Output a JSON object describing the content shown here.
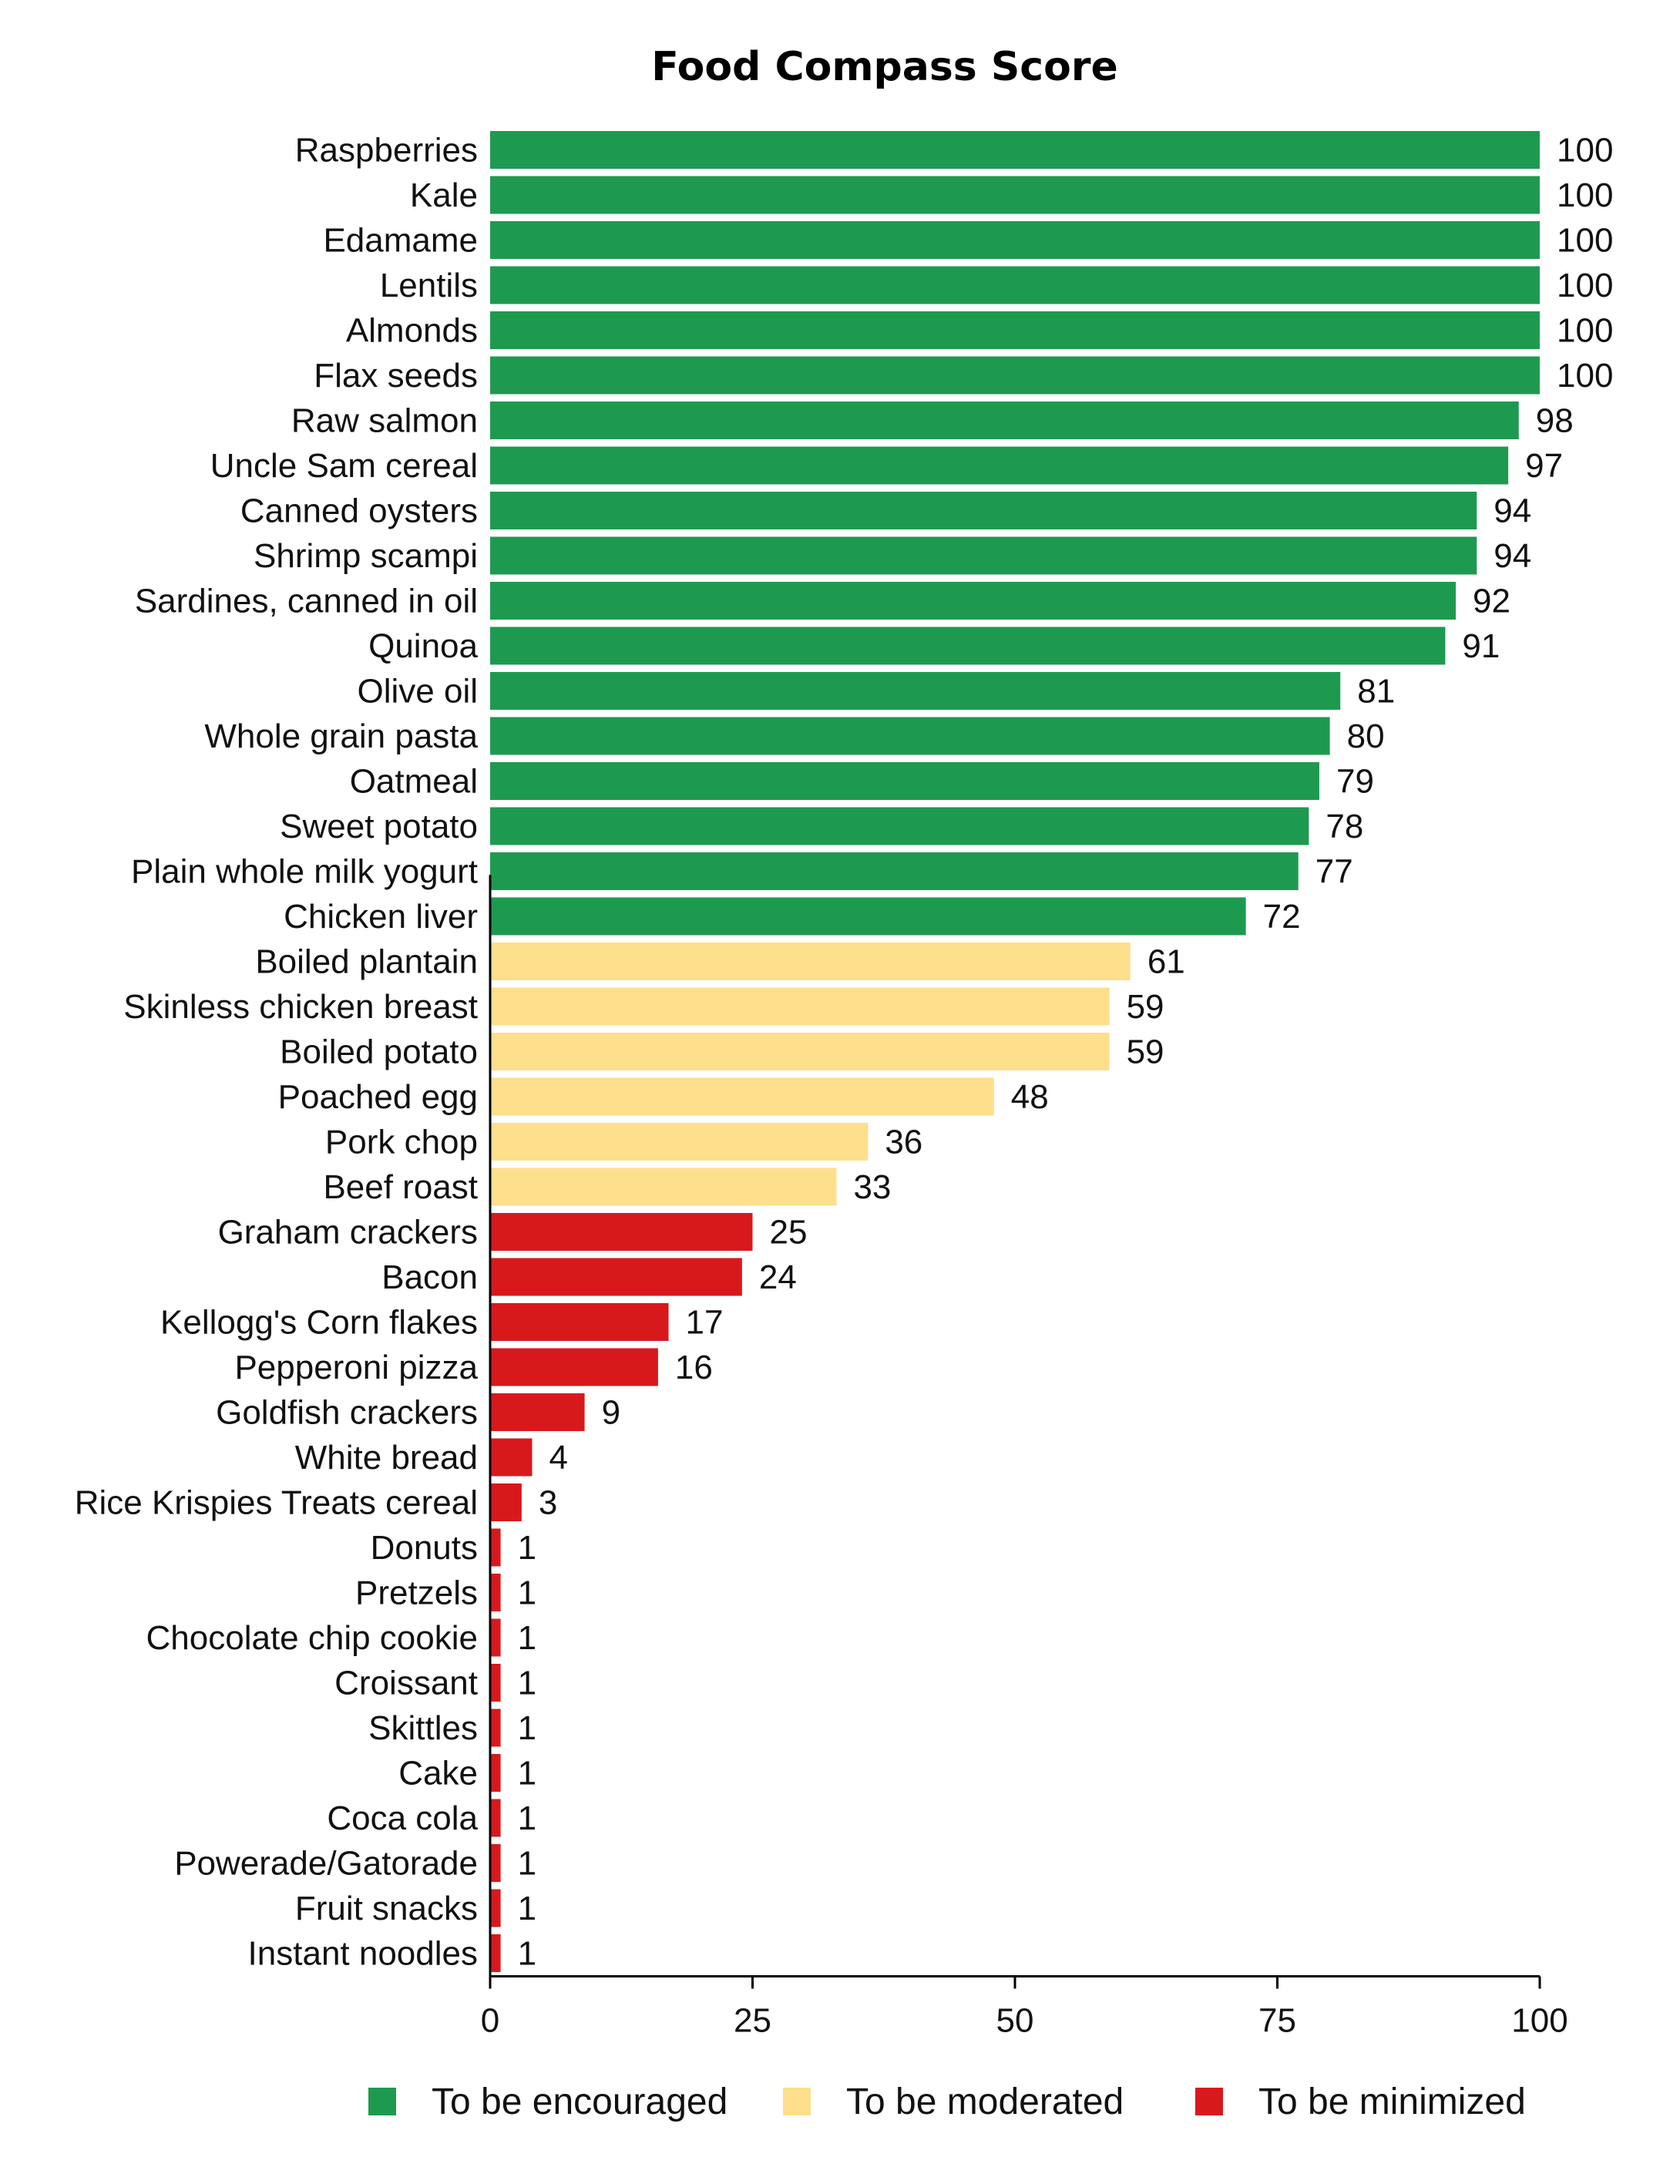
{
  "chart_data": {
    "type": "bar",
    "orientation": "horizontal",
    "title": "Food Compass Score",
    "xlabel": "",
    "ylabel": "",
    "xlim": [
      0,
      100
    ],
    "ticks": [
      0,
      25,
      50,
      75,
      100
    ],
    "grid": false,
    "legend_position": "bottom",
    "colors": {
      "encouraged": "#1e9a50",
      "moderated": "#fddf8c",
      "minimized": "#d7191c"
    },
    "legend": [
      {
        "key": "encouraged",
        "label": "To be encouraged"
      },
      {
        "key": "moderated",
        "label": "To be moderated"
      },
      {
        "key": "minimized",
        "label": "To be minimized"
      }
    ],
    "items": [
      {
        "name": "Raspberries",
        "value": 100,
        "group": "encouraged"
      },
      {
        "name": "Kale",
        "value": 100,
        "group": "encouraged"
      },
      {
        "name": "Edamame",
        "value": 100,
        "group": "encouraged"
      },
      {
        "name": "Lentils",
        "value": 100,
        "group": "encouraged"
      },
      {
        "name": "Almonds",
        "value": 100,
        "group": "encouraged"
      },
      {
        "name": "Flax seeds",
        "value": 100,
        "group": "encouraged"
      },
      {
        "name": "Raw salmon",
        "value": 98,
        "group": "encouraged"
      },
      {
        "name": "Uncle Sam cereal",
        "value": 97,
        "group": "encouraged"
      },
      {
        "name": "Canned oysters",
        "value": 94,
        "group": "encouraged"
      },
      {
        "name": "Shrimp scampi",
        "value": 94,
        "group": "encouraged"
      },
      {
        "name": "Sardines, canned in oil",
        "value": 92,
        "group": "encouraged"
      },
      {
        "name": "Quinoa",
        "value": 91,
        "group": "encouraged"
      },
      {
        "name": "Olive oil",
        "value": 81,
        "group": "encouraged"
      },
      {
        "name": "Whole grain pasta",
        "value": 80,
        "group": "encouraged"
      },
      {
        "name": "Oatmeal",
        "value": 79,
        "group": "encouraged"
      },
      {
        "name": "Sweet potato",
        "value": 78,
        "group": "encouraged"
      },
      {
        "name": "Plain whole milk yogurt",
        "value": 77,
        "group": "encouraged"
      },
      {
        "name": "Chicken liver",
        "value": 72,
        "group": "encouraged"
      },
      {
        "name": "Boiled plantain",
        "value": 61,
        "group": "moderated"
      },
      {
        "name": "Skinless chicken breast",
        "value": 59,
        "group": "moderated"
      },
      {
        "name": "Boiled potato",
        "value": 59,
        "group": "moderated"
      },
      {
        "name": "Poached egg",
        "value": 48,
        "group": "moderated"
      },
      {
        "name": "Pork chop",
        "value": 36,
        "group": "moderated"
      },
      {
        "name": "Beef roast",
        "value": 33,
        "group": "moderated"
      },
      {
        "name": "Graham crackers",
        "value": 25,
        "group": "minimized"
      },
      {
        "name": "Bacon",
        "value": 24,
        "group": "minimized"
      },
      {
        "name": "Kellogg's Corn flakes",
        "value": 17,
        "group": "minimized"
      },
      {
        "name": "Pepperoni pizza",
        "value": 16,
        "group": "minimized"
      },
      {
        "name": "Goldfish crackers",
        "value": 9,
        "group": "minimized"
      },
      {
        "name": "White bread",
        "value": 4,
        "group": "minimized"
      },
      {
        "name": "Rice Krispies Treats cereal",
        "value": 3,
        "group": "minimized"
      },
      {
        "name": "Donuts",
        "value": 1,
        "group": "minimized"
      },
      {
        "name": "Pretzels",
        "value": 1,
        "group": "minimized"
      },
      {
        "name": "Chocolate chip cookie",
        "value": 1,
        "group": "minimized"
      },
      {
        "name": "Croissant",
        "value": 1,
        "group": "minimized"
      },
      {
        "name": "Skittles",
        "value": 1,
        "group": "minimized"
      },
      {
        "name": "Cake",
        "value": 1,
        "group": "minimized"
      },
      {
        "name": "Coca cola",
        "value": 1,
        "group": "minimized"
      },
      {
        "name": "Powerade/Gatorade",
        "value": 1,
        "group": "minimized"
      },
      {
        "name": "Fruit snacks",
        "value": 1,
        "group": "minimized"
      },
      {
        "name": "Instant noodles",
        "value": 1,
        "group": "minimized"
      }
    ]
  }
}
